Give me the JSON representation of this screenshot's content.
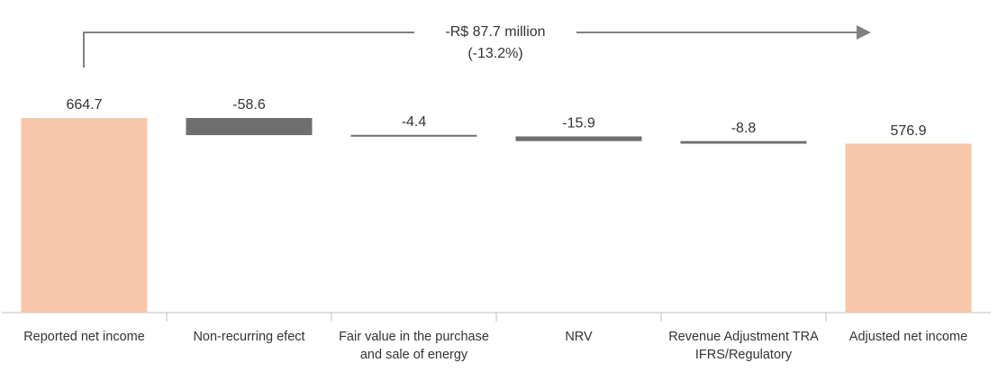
{
  "chart_data": {
    "type": "waterfall",
    "annotation": [
      "-R$ 87.7 million",
      "(-13.2%)"
    ],
    "categories": [
      "Reported net income",
      "Non-recurring efect",
      "Fair value in the purchase and sale of energy",
      "NRV",
      "Revenue Adjustment TRA IFRS/Regulatory",
      "Adjusted net income"
    ],
    "values": [
      664.7,
      -58.6,
      -4.4,
      -15.9,
      -8.8,
      576.9
    ],
    "measure": [
      "absolute",
      "relative",
      "relative",
      "relative",
      "relative",
      "total"
    ],
    "total_color": "#f8c6a9",
    "delta_color": "#6e6e6e"
  }
}
